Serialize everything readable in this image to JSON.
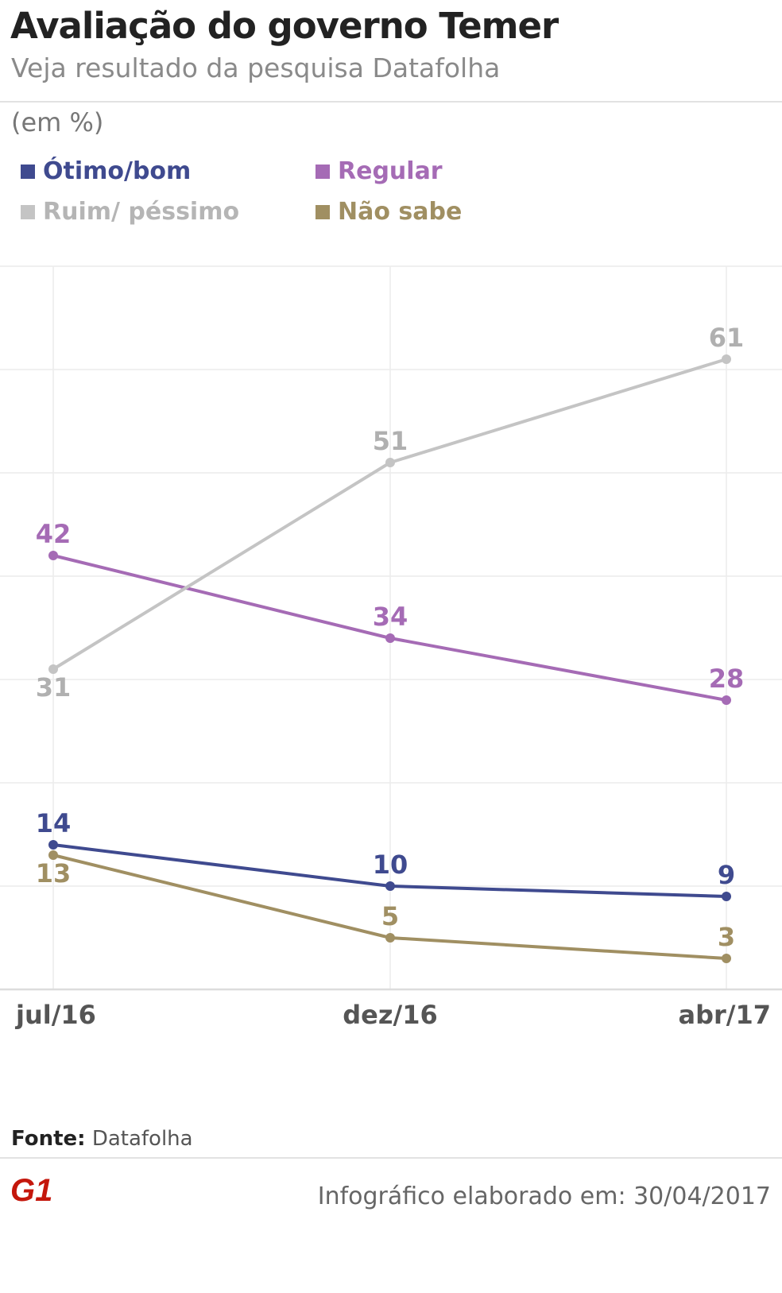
{
  "header": {
    "title": "Avaliação do governo Temer",
    "subtitle": "Veja resultado da pesquisa Datafolha"
  },
  "unit_label": "(em %)",
  "legend": [
    {
      "label": "Ótimo/bom",
      "color": "#3f4a8f"
    },
    {
      "label": "Regular",
      "color": "#a56bb5"
    },
    {
      "label": "Ruim/ péssimo",
      "color": "#c4c4c4"
    },
    {
      "label": "Não sabe",
      "color": "#a08f62"
    }
  ],
  "chart_data": {
    "type": "line",
    "title": "Avaliação do governo Temer",
    "subtitle": "Veja resultado da pesquisa Datafolha",
    "ylabel": "(em %)",
    "xlabel": "",
    "categories": [
      "jul/16",
      "dez/16",
      "abr/17"
    ],
    "ylim": [
      0,
      70
    ],
    "grid": true,
    "legend_position": "top",
    "series": [
      {
        "name": "Ótimo/bom",
        "values": [
          14,
          10,
          9
        ],
        "color": "#3f4a8f"
      },
      {
        "name": "Regular",
        "values": [
          42,
          34,
          28
        ],
        "color": "#a56bb5"
      },
      {
        "name": "Ruim/ péssimo",
        "values": [
          31,
          51,
          61
        ],
        "color": "#c4c4c4"
      },
      {
        "name": "Não sabe",
        "values": [
          13,
          5,
          3
        ],
        "color": "#a08f62"
      }
    ]
  },
  "footer": {
    "source_label": "Fonte:",
    "source_value": "Datafolha",
    "logo_text": "G1",
    "note": "Infográfico elaborado em: 30/04/2017"
  }
}
